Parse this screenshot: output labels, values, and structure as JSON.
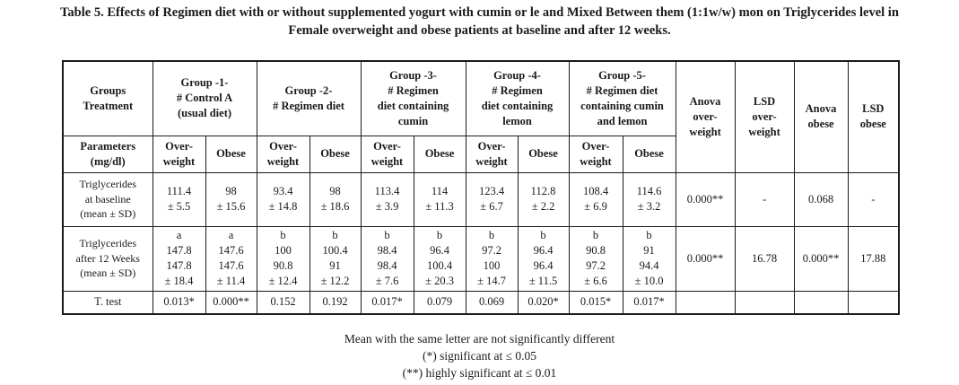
{
  "caption": {
    "line1": "Table 5. Effects of Regimen diet with or without supplemented yogurt with cumin or le and Mixed Between them (1:1w/w) mon on Triglycerides level in",
    "line2": "Female overweight and obese patients at baseline and after 12 weeks."
  },
  "header": {
    "groups_treatment": "Groups\nTreatment",
    "group1": "Group -1-\n# Control A\n(usual diet)",
    "group2": "Group -2-\n# Regimen diet",
    "group3": "Group -3-\n# Regimen\ndiet containing\ncumin",
    "group4": "Group -4-\n# Regimen\ndiet containing\nlemon",
    "group5": "Group -5-\n# Regimen diet\ncontaining cumin\nand lemon",
    "anova_overweight": "Anova\nover-\nweight",
    "lsd_overweight": "LSD\nover-\nweight",
    "anova_obese": "Anova\nobese",
    "lsd_obese": "LSD\nobese"
  },
  "subheader": {
    "parameters": "Parameters\n(mg/dl)",
    "overweight": "Over-\nweight",
    "obese": "Obese"
  },
  "rows": {
    "baseline": {
      "label": "Triglycerides\nat baseline\n(mean ± SD)",
      "values": [
        "111.4\n± 5.5",
        "98\n± 15.6",
        "93.4\n± 14.8",
        "98\n± 18.6",
        "113.4\n± 3.9",
        "114\n± 11.3",
        "123.4\n± 6.7",
        "112.8\n± 2.2",
        "108.4\n± 6.9",
        "114.6\n± 3.2"
      ],
      "anova_overweight": "0.000**",
      "lsd_overweight": "-",
      "anova_obese": "0.068",
      "lsd_obese": "-"
    },
    "after12": {
      "label": "Triglycerides\nafter 12 Weeks\n(mean ± SD)",
      "values": [
        "a\n147.8\n147.8\n± 18.4",
        "a\n147.6\n147.6\n± 11.4",
        "b\n100\n90.8\n± 12.4",
        "b\n100.4\n91\n± 12.2",
        "b\n98.4\n98.4\n± 7.6",
        "b\n96.4\n100.4\n± 20.3",
        "b\n97.2\n100\n± 14.7",
        "b\n96.4\n96.4\n± 11.5",
        "b\n90.8\n97.2\n± 6.6",
        "b\n91\n94.4\n± 10.0"
      ],
      "anova_overweight": "0.000**",
      "lsd_overweight": "16.78",
      "anova_obese": "0.000**",
      "lsd_obese": "17.88"
    },
    "ttest": {
      "label": "T. test",
      "values": [
        "0.013*",
        "0.000**",
        "0.152",
        "0.192",
        "0.017*",
        "0.079",
        "0.069",
        "0.020*",
        "0.015*",
        "0.017*"
      ]
    }
  },
  "notes": {
    "line1": "Mean with the same letter are not significantly different",
    "line2": "(*) significant at ≤ 0.05",
    "line3": "(**) highly significant at ≤ 0.01"
  }
}
